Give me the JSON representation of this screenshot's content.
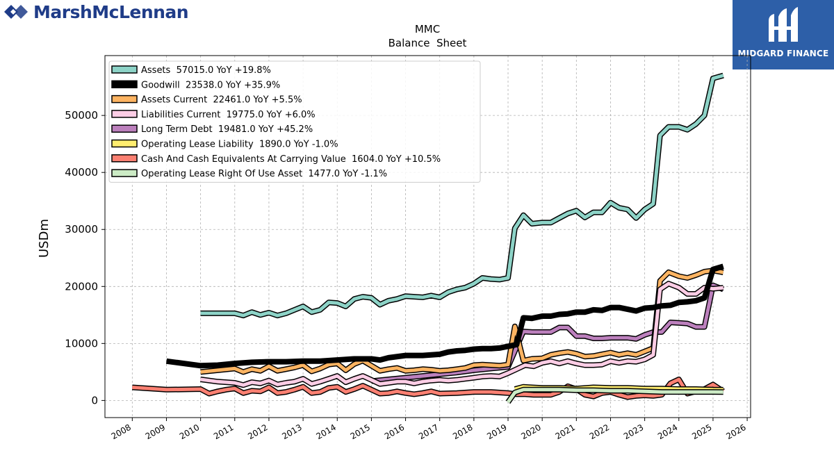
{
  "branding": {
    "company_logo_text": "MarshMcLennan",
    "corner_logo_text": "MIDGARD FINANCE",
    "corner_color": "#2d5fa8",
    "brand_color": "#1f3c88"
  },
  "chart_data": {
    "type": "line",
    "title": "MMC",
    "subtitle": "Balance  Sheet",
    "xlabel": "",
    "ylabel": "USDm",
    "xlim": [
      2007.2,
      2026.1
    ],
    "ylim": [
      -3000,
      60500
    ],
    "xticks": [
      2008,
      2009,
      2010,
      2011,
      2012,
      2013,
      2014,
      2015,
      2016,
      2017,
      2018,
      2019,
      2020,
      2021,
      2022,
      2023,
      2024,
      2025,
      2026
    ],
    "yticks": [
      0,
      10000,
      20000,
      30000,
      40000,
      50000
    ],
    "grid": true,
    "legend_position": "top-left",
    "series": [
      {
        "name": "Assets",
        "label": "Assets  57015.0 YoY +19.8%",
        "color": "#8dd3c7",
        "border": true,
        "x": [
          2010.0,
          2011.0,
          2011.25,
          2011.5,
          2011.75,
          2012.0,
          2012.25,
          2012.5,
          2012.75,
          2013.0,
          2013.25,
          2013.5,
          2013.75,
          2014.0,
          2014.25,
          2014.5,
          2014.75,
          2015.0,
          2015.25,
          2015.5,
          2015.75,
          2016.0,
          2016.5,
          2016.75,
          2017.0,
          2017.25,
          2017.5,
          2017.75,
          2018.0,
          2018.25,
          2018.5,
          2018.75,
          2019.0,
          2019.2,
          2019.45,
          2019.7,
          2020.0,
          2020.25,
          2020.5,
          2020.75,
          2021.0,
          2021.25,
          2021.5,
          2021.75,
          2022.0,
          2022.25,
          2022.5,
          2022.75,
          2023.0,
          2023.25,
          2023.45,
          2023.7,
          2024.0,
          2024.25,
          2024.5,
          2024.75,
          2025.0,
          2025.3
        ],
        "y": [
          15300,
          15300,
          14900,
          15500,
          15000,
          15400,
          14900,
          15300,
          15900,
          16500,
          15500,
          15900,
          17200,
          17100,
          16500,
          17800,
          18200,
          18000,
          16800,
          17500,
          17800,
          18300,
          18100,
          18400,
          18100,
          19000,
          19500,
          19800,
          20500,
          21500,
          21300,
          21200,
          21500,
          30200,
          32500,
          31000,
          31200,
          31200,
          32000,
          32800,
          33300,
          32100,
          33000,
          33000,
          34700,
          33800,
          33500,
          32000,
          33500,
          34500,
          46500,
          48000,
          48000,
          47500,
          48500,
          50000,
          56500,
          57015
        ]
      },
      {
        "name": "Goodwill",
        "label": "Goodwill  23538.0 YoY +35.9%",
        "color": "#000000",
        "border": false,
        "x": [
          2009.0,
          2010.0,
          2010.5,
          2011.0,
          2011.5,
          2012.0,
          2012.5,
          2013.0,
          2013.5,
          2014.0,
          2014.5,
          2015.0,
          2015.25,
          2015.5,
          2016.0,
          2016.5,
          2016.75,
          2017.0,
          2017.25,
          2017.5,
          2017.75,
          2018.0,
          2018.25,
          2018.5,
          2018.75,
          2019.0,
          2019.25,
          2019.45,
          2019.7,
          2020.0,
          2020.25,
          2020.5,
          2020.75,
          2021.0,
          2021.25,
          2021.5,
          2021.75,
          2022.0,
          2022.25,
          2022.5,
          2022.75,
          2023.0,
          2023.25,
          2023.5,
          2023.75,
          2024.0,
          2024.25,
          2024.5,
          2024.75,
          2025.0,
          2025.3
        ],
        "y": [
          6900,
          6100,
          6200,
          6500,
          6700,
          6800,
          6800,
          6900,
          6900,
          7100,
          7300,
          7300,
          7100,
          7500,
          7900,
          7900,
          8000,
          8100,
          8500,
          8700,
          8800,
          9000,
          9100,
          9100,
          9200,
          9500,
          9800,
          14500,
          14400,
          14800,
          14800,
          15100,
          15200,
          15500,
          15500,
          15900,
          15800,
          16300,
          16300,
          16000,
          15700,
          16200,
          16300,
          16600,
          16700,
          17200,
          17300,
          17500,
          18000,
          23000,
          23538
        ]
      },
      {
        "name": "Assets Current",
        "label": "Assets Current  22461.0 YoY +5.5%",
        "color": "#fdb462",
        "border": true,
        "x": [
          2010.0,
          2010.5,
          2011.0,
          2011.25,
          2011.5,
          2011.75,
          2012.0,
          2012.25,
          2012.5,
          2012.75,
          2013.0,
          2013.25,
          2013.5,
          2013.75,
          2014.0,
          2014.25,
          2014.5,
          2014.75,
          2015.0,
          2015.25,
          2015.5,
          2015.75,
          2016.0,
          2016.25,
          2016.5,
          2016.75,
          2017.0,
          2017.25,
          2017.5,
          2017.75,
          2018.0,
          2018.25,
          2018.5,
          2018.75,
          2019.0,
          2019.2,
          2019.45,
          2019.7,
          2020.0,
          2020.25,
          2020.5,
          2020.75,
          2021.0,
          2021.25,
          2021.5,
          2021.75,
          2022.0,
          2022.25,
          2022.5,
          2022.75,
          2023.0,
          2023.25,
          2023.45,
          2023.7,
          2024.0,
          2024.25,
          2024.5,
          2024.75,
          2025.0,
          2025.3
        ],
        "y": [
          5000,
          5300,
          5600,
          5000,
          5500,
          5200,
          6000,
          5200,
          5500,
          5800,
          6200,
          5100,
          5600,
          6300,
          6500,
          5300,
          6400,
          7000,
          6100,
          5200,
          5500,
          5700,
          5200,
          5300,
          5500,
          5400,
          5200,
          5300,
          5500,
          5700,
          6200,
          6300,
          6200,
          6100,
          6300,
          13000,
          7000,
          7300,
          7400,
          8000,
          8300,
          8500,
          8200,
          7700,
          7800,
          8100,
          8400,
          8000,
          8300,
          8000,
          8600,
          9200,
          21000,
          22500,
          21800,
          21500,
          22000,
          22600,
          22800,
          22461
        ]
      },
      {
        "name": "Liabilities Current",
        "label": "Liabilities Current  19775.0 YoY +6.0%",
        "color": "#fccde5",
        "border": true,
        "x": [
          2010.0,
          2010.5,
          2011.0,
          2011.25,
          2011.5,
          2011.75,
          2012.0,
          2012.25,
          2012.5,
          2012.75,
          2013.0,
          2013.25,
          2013.5,
          2013.75,
          2014.0,
          2014.25,
          2014.5,
          2014.75,
          2015.0,
          2015.25,
          2015.5,
          2015.75,
          2016.0,
          2016.25,
          2016.5,
          2016.75,
          2017.0,
          2017.25,
          2017.5,
          2017.75,
          2018.0,
          2018.25,
          2018.5,
          2018.75,
          2019.0,
          2019.25,
          2019.5,
          2019.75,
          2020.0,
          2020.25,
          2020.5,
          2020.75,
          2021.0,
          2021.25,
          2021.5,
          2021.75,
          2022.0,
          2022.25,
          2022.5,
          2022.75,
          2023.0,
          2023.25,
          2023.45,
          2023.7,
          2024.0,
          2024.25,
          2024.5,
          2024.75,
          2025.0,
          2025.3
        ],
        "y": [
          3700,
          3300,
          3100,
          2700,
          3200,
          3000,
          3500,
          2800,
          3100,
          3300,
          3800,
          2900,
          3300,
          3800,
          4300,
          3200,
          3800,
          4300,
          3600,
          2900,
          3100,
          3300,
          3300,
          3000,
          3300,
          3500,
          3600,
          3500,
          3600,
          3800,
          4000,
          4200,
          4300,
          4200,
          4800,
          5500,
          6200,
          6000,
          6600,
          6900,
          6500,
          6900,
          6500,
          6200,
          6200,
          6300,
          6900,
          6600,
          6900,
          6800,
          7200,
          8000,
          19500,
          20500,
          19800,
          18700,
          18700,
          19800,
          19600,
          19775
        ]
      },
      {
        "name": "Long Term Debt",
        "label": "Long Term Debt  19481.0 YoY +45.2%",
        "color": "#bc80bd",
        "border": true,
        "x": [
          2015.0,
          2015.5,
          2016.0,
          2016.5,
          2017.0,
          2017.5,
          2018.0,
          2018.5,
          2019.0,
          2019.45,
          2019.7,
          2020.0,
          2020.25,
          2020.5,
          2020.75,
          2021.0,
          2021.25,
          2021.5,
          2021.75,
          2022.0,
          2022.25,
          2022.5,
          2022.75,
          2023.0,
          2023.25,
          2023.5,
          2023.75,
          2024.0,
          2024.25,
          2024.5,
          2024.75,
          2025.0,
          2025.3
        ],
        "y": [
          3400,
          3700,
          4000,
          4300,
          4600,
          4900,
          5300,
          5600,
          5900,
          12100,
          12000,
          12000,
          12000,
          12800,
          12800,
          11300,
          11300,
          10900,
          10900,
          11000,
          11000,
          11000,
          10800,
          11500,
          12000,
          12000,
          13700,
          13600,
          13500,
          12900,
          12900,
          20200,
          19481
        ]
      },
      {
        "name": "Operating Lease Liability",
        "label": "Operating Lease Liability  1890.0 YoY -1.0%",
        "color": "#ffed6f",
        "border": true,
        "x": [
          2019.2,
          2019.45,
          2019.7,
          2020.0,
          2020.5,
          2021.0,
          2021.5,
          2022.0,
          2022.5,
          2023.0,
          2023.5,
          2024.0,
          2024.5,
          2025.0,
          2025.3
        ],
        "y": [
          2000,
          2400,
          2300,
          2200,
          2200,
          2100,
          2300,
          2200,
          2200,
          2100,
          2100,
          2000,
          2000,
          1900,
          1890
        ]
      },
      {
        "name": "Cash And Cash Equivalents At Carrying Value",
        "label": "Cash And Cash Equivalents At Carrying Value  1604.0 YoY +10.5%",
        "color": "#fb8072",
        "border": true,
        "x": [
          2008.0,
          2009.0,
          2010.0,
          2010.25,
          2010.5,
          2010.75,
          2011.0,
          2011.25,
          2011.5,
          2011.75,
          2012.0,
          2012.25,
          2012.5,
          2012.75,
          2013.0,
          2013.25,
          2013.5,
          2013.75,
          2014.0,
          2014.25,
          2014.5,
          2014.75,
          2015.0,
          2015.25,
          2015.5,
          2015.75,
          2016.0,
          2016.25,
          2016.5,
          2016.75,
          2017.0,
          2017.5,
          2018.0,
          2018.5,
          2019.0,
          2019.25,
          2019.5,
          2019.75,
          2020.0,
          2020.25,
          2020.5,
          2020.75,
          2021.0,
          2021.25,
          2021.5,
          2021.75,
          2022.0,
          2022.25,
          2022.5,
          2022.75,
          2023.0,
          2023.25,
          2023.5,
          2023.75,
          2024.0,
          2024.25,
          2024.5,
          2024.75,
          2025.0,
          2025.3
        ],
        "y": [
          2300,
          1900,
          2000,
          1200,
          1600,
          1900,
          2100,
          1300,
          1700,
          1600,
          2300,
          1300,
          1500,
          1900,
          2400,
          1300,
          1500,
          2200,
          2400,
          1500,
          2000,
          2600,
          1900,
          1200,
          1300,
          1600,
          1300,
          1100,
          1300,
          1600,
          1200,
          1300,
          1500,
          1500,
          1300,
          1100,
          1100,
          1000,
          1000,
          1000,
          1500,
          2500,
          2000,
          1000,
          700,
          1300,
          1500,
          1000,
          600,
          800,
          900,
          800,
          1000,
          3000,
          3700,
          1200,
          1600,
          2000,
          2800,
          1604
        ]
      },
      {
        "name": "Operating Lease Right Of Use Asset",
        "label": "Operating Lease Right Of Use Asset  1477.0 YoY -1.1%",
        "color": "#ccebc5",
        "border": true,
        "x": [
          2019.0,
          2019.2,
          2019.45,
          2020.0,
          2020.5,
          2021.0,
          2021.5,
          2022.0,
          2022.5,
          2023.0,
          2023.5,
          2024.0,
          2024.5,
          2025.0,
          2025.3
        ],
        "y": [
          -300,
          1400,
          1900,
          1900,
          1900,
          1800,
          1800,
          1700,
          1700,
          1600,
          1500,
          1500,
          1500,
          1500,
          1477
        ]
      }
    ]
  }
}
